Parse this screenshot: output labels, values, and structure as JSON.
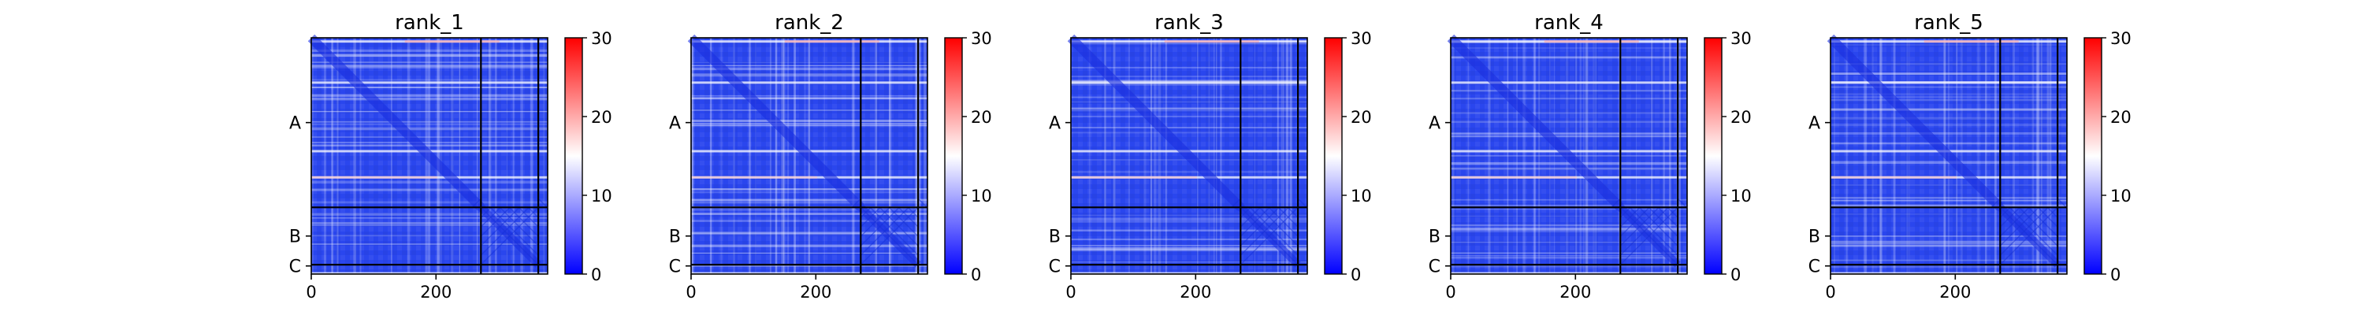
{
  "chart_data": [
    {
      "type": "heatmap",
      "title": "rank_1",
      "x_ticks": [
        "0",
        "200"
      ],
      "x_tick_values": [
        0,
        200
      ],
      "y_ticks": [
        "A",
        "B",
        "C"
      ],
      "y_tick_values": [
        136,
        318,
        366
      ],
      "axis_range": [
        0,
        379
      ],
      "chain_boundaries": [
        272,
        364
      ],
      "colorbar": {
        "ticks": [
          "0",
          "10",
          "20",
          "30"
        ],
        "min": 0,
        "max": 30,
        "colormap": "bwr"
      },
      "grid": false
    },
    {
      "type": "heatmap",
      "title": "rank_2",
      "x_ticks": [
        "0",
        "200"
      ],
      "x_tick_values": [
        0,
        200
      ],
      "y_ticks": [
        "A",
        "B",
        "C"
      ],
      "y_tick_values": [
        136,
        318,
        366
      ],
      "axis_range": [
        0,
        379
      ],
      "chain_boundaries": [
        272,
        364
      ],
      "colorbar": {
        "ticks": [
          "0",
          "10",
          "20",
          "30"
        ],
        "min": 0,
        "max": 30,
        "colormap": "bwr"
      },
      "grid": false
    },
    {
      "type": "heatmap",
      "title": "rank_3",
      "x_ticks": [
        "0",
        "200"
      ],
      "x_tick_values": [
        0,
        200
      ],
      "y_ticks": [
        "A",
        "B",
        "C"
      ],
      "y_tick_values": [
        136,
        318,
        366
      ],
      "axis_range": [
        0,
        379
      ],
      "chain_boundaries": [
        272,
        364
      ],
      "colorbar": {
        "ticks": [
          "0",
          "10",
          "20",
          "30"
        ],
        "min": 0,
        "max": 30,
        "colormap": "bwr"
      },
      "grid": false
    },
    {
      "type": "heatmap",
      "title": "rank_4",
      "x_ticks": [
        "0",
        "200"
      ],
      "x_tick_values": [
        0,
        200
      ],
      "y_ticks": [
        "A",
        "B",
        "C"
      ],
      "y_tick_values": [
        136,
        318,
        366
      ],
      "axis_range": [
        0,
        379
      ],
      "chain_boundaries": [
        272,
        364
      ],
      "colorbar": {
        "ticks": [
          "0",
          "10",
          "20",
          "30"
        ],
        "min": 0,
        "max": 30,
        "colormap": "bwr"
      },
      "grid": false
    },
    {
      "type": "heatmap",
      "title": "rank_5",
      "x_ticks": [
        "0",
        "200"
      ],
      "x_tick_values": [
        0,
        200
      ],
      "y_ticks": [
        "A",
        "B",
        "C"
      ],
      "y_tick_values": [
        136,
        318,
        366
      ],
      "axis_range": [
        0,
        379
      ],
      "chain_boundaries": [
        272,
        364
      ],
      "colorbar": {
        "ticks": [
          "0",
          "10",
          "20",
          "30"
        ],
        "min": 0,
        "max": 30,
        "colormap": "bwr"
      },
      "grid": false
    }
  ],
  "colors": {
    "low": "#0000ff",
    "mid": "#ffffff",
    "high": "#ff0000",
    "heat_base": "#2a46ee",
    "divider": "#000000"
  }
}
